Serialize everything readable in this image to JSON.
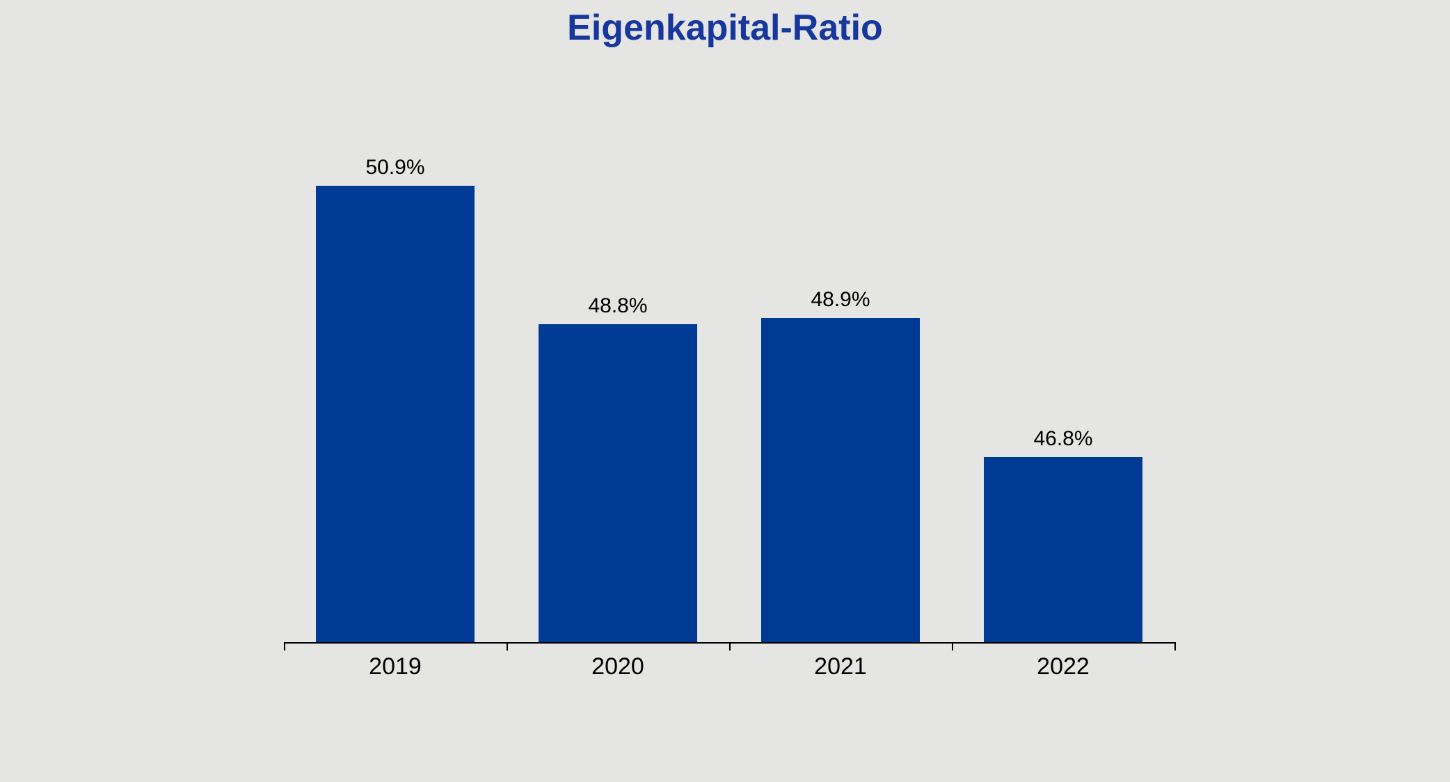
{
  "chart_data": {
    "type": "bar",
    "title": "Eigenkapital-Ratio",
    "categories": [
      "2019",
      "2020",
      "2021",
      "2022"
    ],
    "values": [
      50.9,
      48.8,
      48.9,
      46.8
    ],
    "value_labels": [
      "50.9%",
      "48.8%",
      "48.9%",
      "46.8%"
    ],
    "xlabel": "",
    "ylabel": "",
    "ylim": [
      44,
      51.6
    ],
    "grid": false,
    "legend": false,
    "colors": {
      "background": "#e5e5e4",
      "bar": "#003a94",
      "title": "#17379c",
      "axis": "#000000",
      "label": "#000000"
    }
  }
}
